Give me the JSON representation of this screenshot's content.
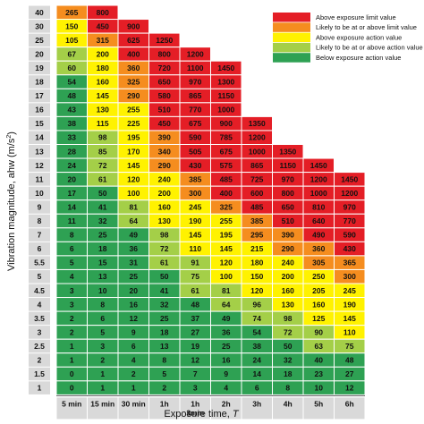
{
  "chart_data": {
    "type": "heatmap",
    "xlabel_main": "Exposure time, ",
    "xlabel_var": "T",
    "ylabel_main": "Vibration magnitude, ahw (m/s",
    "ylabel_sup": "2",
    "ylabel_end": ")",
    "x_categories": [
      {
        "line1": "5 min",
        "line2": ""
      },
      {
        "line1": "15 min",
        "line2": ""
      },
      {
        "line1": "30 min",
        "line2": ""
      },
      {
        "line1": "1h",
        "line2": ""
      },
      {
        "line1": "1h",
        "line2": "3min"
      },
      {
        "line1": "2h",
        "line2": ""
      },
      {
        "line1": "3h",
        "line2": ""
      },
      {
        "line1": "4h",
        "line2": ""
      },
      {
        "line1": "5h",
        "line2": ""
      },
      {
        "line1": "6h",
        "line2": ""
      }
    ],
    "y_categories": [
      "40",
      "30",
      "25",
      "20",
      "19",
      "18",
      "17",
      "16",
      "15",
      "14",
      "13",
      "12",
      "11",
      "10",
      "9",
      "8",
      "7",
      "6",
      "5.5",
      "5",
      "4.5",
      "4",
      "3.5",
      "3",
      "2.5",
      "2",
      "1.5",
      "1"
    ],
    "rows": [
      [
        {
          "v": "265",
          "c": "orange"
        },
        {
          "v": "800",
          "c": "red"
        }
      ],
      [
        {
          "v": "150",
          "c": "yellow"
        },
        {
          "v": "450",
          "c": "red"
        },
        {
          "v": "900",
          "c": "red"
        }
      ],
      [
        {
          "v": "105",
          "c": "yellow"
        },
        {
          "v": "315",
          "c": "orange"
        },
        {
          "v": "625",
          "c": "red"
        },
        {
          "v": "1250",
          "c": "red"
        }
      ],
      [
        {
          "v": "67",
          "c": "lightgreen"
        },
        {
          "v": "200",
          "c": "yellow"
        },
        {
          "v": "400",
          "c": "red"
        },
        {
          "v": "800",
          "c": "red"
        },
        {
          "v": "1200",
          "c": "red"
        }
      ],
      [
        {
          "v": "60",
          "c": "lightgreen"
        },
        {
          "v": "180",
          "c": "yellow"
        },
        {
          "v": "360",
          "c": "orange"
        },
        {
          "v": "720",
          "c": "red"
        },
        {
          "v": "1100",
          "c": "red"
        },
        {
          "v": "1450",
          "c": "red"
        }
      ],
      [
        {
          "v": "54",
          "c": "green"
        },
        {
          "v": "160",
          "c": "yellow"
        },
        {
          "v": "325",
          "c": "orange"
        },
        {
          "v": "650",
          "c": "red"
        },
        {
          "v": "970",
          "c": "red"
        },
        {
          "v": "1300",
          "c": "red"
        }
      ],
      [
        {
          "v": "48",
          "c": "green"
        },
        {
          "v": "145",
          "c": "yellow"
        },
        {
          "v": "290",
          "c": "orange"
        },
        {
          "v": "580",
          "c": "red"
        },
        {
          "v": "865",
          "c": "red"
        },
        {
          "v": "1150",
          "c": "red"
        }
      ],
      [
        {
          "v": "43",
          "c": "green"
        },
        {
          "v": "130",
          "c": "yellow"
        },
        {
          "v": "255",
          "c": "yellow"
        },
        {
          "v": "510",
          "c": "red"
        },
        {
          "v": "770",
          "c": "red"
        },
        {
          "v": "1000",
          "c": "red"
        }
      ],
      [
        {
          "v": "38",
          "c": "green"
        },
        {
          "v": "115",
          "c": "yellow"
        },
        {
          "v": "225",
          "c": "yellow"
        },
        {
          "v": "450",
          "c": "red"
        },
        {
          "v": "675",
          "c": "red"
        },
        {
          "v": "900",
          "c": "red"
        },
        {
          "v": "1350",
          "c": "red"
        }
      ],
      [
        {
          "v": "33",
          "c": "green"
        },
        {
          "v": "98",
          "c": "lightgreen"
        },
        {
          "v": "195",
          "c": "yellow"
        },
        {
          "v": "390",
          "c": "orange"
        },
        {
          "v": "590",
          "c": "red"
        },
        {
          "v": "785",
          "c": "red"
        },
        {
          "v": "1200",
          "c": "red"
        }
      ],
      [
        {
          "v": "28",
          "c": "green"
        },
        {
          "v": "85",
          "c": "lightgreen"
        },
        {
          "v": "170",
          "c": "yellow"
        },
        {
          "v": "340",
          "c": "orange"
        },
        {
          "v": "505",
          "c": "red"
        },
        {
          "v": "675",
          "c": "red"
        },
        {
          "v": "1000",
          "c": "red"
        },
        {
          "v": "1350",
          "c": "red"
        }
      ],
      [
        {
          "v": "24",
          "c": "green"
        },
        {
          "v": "72",
          "c": "lightgreen"
        },
        {
          "v": "145",
          "c": "yellow"
        },
        {
          "v": "290",
          "c": "orange"
        },
        {
          "v": "430",
          "c": "red"
        },
        {
          "v": "575",
          "c": "red"
        },
        {
          "v": "865",
          "c": "red"
        },
        {
          "v": "1150",
          "c": "red"
        },
        {
          "v": "1450",
          "c": "red"
        }
      ],
      [
        {
          "v": "20",
          "c": "green"
        },
        {
          "v": "61",
          "c": "lightgreen"
        },
        {
          "v": "120",
          "c": "yellow"
        },
        {
          "v": "240",
          "c": "yellow"
        },
        {
          "v": "385",
          "c": "orange"
        },
        {
          "v": "485",
          "c": "red"
        },
        {
          "v": "725",
          "c": "red"
        },
        {
          "v": "970",
          "c": "red"
        },
        {
          "v": "1200",
          "c": "red"
        },
        {
          "v": "1450",
          "c": "red"
        }
      ],
      [
        {
          "v": "17",
          "c": "green"
        },
        {
          "v": "50",
          "c": "green"
        },
        {
          "v": "100",
          "c": "yellow"
        },
        {
          "v": "200",
          "c": "yellow"
        },
        {
          "v": "300",
          "c": "orange"
        },
        {
          "v": "400",
          "c": "red"
        },
        {
          "v": "600",
          "c": "red"
        },
        {
          "v": "800",
          "c": "red"
        },
        {
          "v": "1000",
          "c": "red"
        },
        {
          "v": "1200",
          "c": "red"
        }
      ],
      [
        {
          "v": "14",
          "c": "green"
        },
        {
          "v": "41",
          "c": "green"
        },
        {
          "v": "81",
          "c": "lightgreen"
        },
        {
          "v": "160",
          "c": "yellow"
        },
        {
          "v": "245",
          "c": "yellow"
        },
        {
          "v": "325",
          "c": "orange"
        },
        {
          "v": "485",
          "c": "red"
        },
        {
          "v": "650",
          "c": "red"
        },
        {
          "v": "810",
          "c": "red"
        },
        {
          "v": "970",
          "c": "red"
        }
      ],
      [
        {
          "v": "11",
          "c": "green"
        },
        {
          "v": "32",
          "c": "green"
        },
        {
          "v": "64",
          "c": "lightgreen"
        },
        {
          "v": "130",
          "c": "yellow"
        },
        {
          "v": "190",
          "c": "yellow"
        },
        {
          "v": "255",
          "c": "yellow"
        },
        {
          "v": "385",
          "c": "orange"
        },
        {
          "v": "510",
          "c": "red"
        },
        {
          "v": "640",
          "c": "red"
        },
        {
          "v": "770",
          "c": "red"
        }
      ],
      [
        {
          "v": "8",
          "c": "green"
        },
        {
          "v": "25",
          "c": "green"
        },
        {
          "v": "49",
          "c": "green"
        },
        {
          "v": "98",
          "c": "lightgreen"
        },
        {
          "v": "145",
          "c": "yellow"
        },
        {
          "v": "195",
          "c": "yellow"
        },
        {
          "v": "295",
          "c": "orange"
        },
        {
          "v": "390",
          "c": "orange"
        },
        {
          "v": "490",
          "c": "red"
        },
        {
          "v": "590",
          "c": "red"
        }
      ],
      [
        {
          "v": "6",
          "c": "green"
        },
        {
          "v": "18",
          "c": "green"
        },
        {
          "v": "36",
          "c": "green"
        },
        {
          "v": "72",
          "c": "lightgreen"
        },
        {
          "v": "110",
          "c": "yellow"
        },
        {
          "v": "145",
          "c": "yellow"
        },
        {
          "v": "215",
          "c": "yellow"
        },
        {
          "v": "290",
          "c": "orange"
        },
        {
          "v": "360",
          "c": "orange"
        },
        {
          "v": "430",
          "c": "red"
        }
      ],
      [
        {
          "v": "5",
          "c": "green"
        },
        {
          "v": "15",
          "c": "green"
        },
        {
          "v": "31",
          "c": "green"
        },
        {
          "v": "61",
          "c": "lightgreen"
        },
        {
          "v": "91",
          "c": "lightgreen"
        },
        {
          "v": "120",
          "c": "yellow"
        },
        {
          "v": "180",
          "c": "yellow"
        },
        {
          "v": "240",
          "c": "yellow"
        },
        {
          "v": "305",
          "c": "orange"
        },
        {
          "v": "365",
          "c": "orange"
        }
      ],
      [
        {
          "v": "4",
          "c": "green"
        },
        {
          "v": "13",
          "c": "green"
        },
        {
          "v": "25",
          "c": "green"
        },
        {
          "v": "50",
          "c": "green"
        },
        {
          "v": "75",
          "c": "lightgreen"
        },
        {
          "v": "100",
          "c": "yellow"
        },
        {
          "v": "150",
          "c": "yellow"
        },
        {
          "v": "200",
          "c": "yellow"
        },
        {
          "v": "250",
          "c": "yellow"
        },
        {
          "v": "300",
          "c": "orange"
        }
      ],
      [
        {
          "v": "3",
          "c": "green"
        },
        {
          "v": "10",
          "c": "green"
        },
        {
          "v": "20",
          "c": "green"
        },
        {
          "v": "41",
          "c": "green"
        },
        {
          "v": "61",
          "c": "lightgreen"
        },
        {
          "v": "81",
          "c": "lightgreen"
        },
        {
          "v": "120",
          "c": "yellow"
        },
        {
          "v": "160",
          "c": "yellow"
        },
        {
          "v": "205",
          "c": "yellow"
        },
        {
          "v": "245",
          "c": "yellow"
        }
      ],
      [
        {
          "v": "3",
          "c": "green"
        },
        {
          "v": "8",
          "c": "green"
        },
        {
          "v": "16",
          "c": "green"
        },
        {
          "v": "32",
          "c": "green"
        },
        {
          "v": "48",
          "c": "green"
        },
        {
          "v": "64",
          "c": "lightgreen"
        },
        {
          "v": "96",
          "c": "lightgreen"
        },
        {
          "v": "130",
          "c": "yellow"
        },
        {
          "v": "160",
          "c": "yellow"
        },
        {
          "v": "190",
          "c": "yellow"
        }
      ],
      [
        {
          "v": "2",
          "c": "green"
        },
        {
          "v": "6",
          "c": "green"
        },
        {
          "v": "12",
          "c": "green"
        },
        {
          "v": "25",
          "c": "green"
        },
        {
          "v": "37",
          "c": "green"
        },
        {
          "v": "49",
          "c": "green"
        },
        {
          "v": "74",
          "c": "lightgreen"
        },
        {
          "v": "98",
          "c": "lightgreen"
        },
        {
          "v": "125",
          "c": "yellow"
        },
        {
          "v": "145",
          "c": "yellow"
        }
      ],
      [
        {
          "v": "2",
          "c": "green"
        },
        {
          "v": "5",
          "c": "green"
        },
        {
          "v": "9",
          "c": "green"
        },
        {
          "v": "18",
          "c": "green"
        },
        {
          "v": "27",
          "c": "green"
        },
        {
          "v": "36",
          "c": "green"
        },
        {
          "v": "54",
          "c": "green"
        },
        {
          "v": "72",
          "c": "lightgreen"
        },
        {
          "v": "90",
          "c": "lightgreen"
        },
        {
          "v": "110",
          "c": "yellow"
        }
      ],
      [
        {
          "v": "1",
          "c": "green"
        },
        {
          "v": "3",
          "c": "green"
        },
        {
          "v": "6",
          "c": "green"
        },
        {
          "v": "13",
          "c": "green"
        },
        {
          "v": "19",
          "c": "green"
        },
        {
          "v": "25",
          "c": "green"
        },
        {
          "v": "38",
          "c": "green"
        },
        {
          "v": "50",
          "c": "green"
        },
        {
          "v": "63",
          "c": "lightgreen"
        },
        {
          "v": "75",
          "c": "lightgreen"
        }
      ],
      [
        {
          "v": "1",
          "c": "green"
        },
        {
          "v": "2",
          "c": "green"
        },
        {
          "v": "4",
          "c": "green"
        },
        {
          "v": "8",
          "c": "green"
        },
        {
          "v": "12",
          "c": "green"
        },
        {
          "v": "16",
          "c": "green"
        },
        {
          "v": "24",
          "c": "green"
        },
        {
          "v": "32",
          "c": "green"
        },
        {
          "v": "40",
          "c": "green"
        },
        {
          "v": "48",
          "c": "green"
        }
      ],
      [
        {
          "v": "0",
          "c": "green"
        },
        {
          "v": "1",
          "c": "green"
        },
        {
          "v": "2",
          "c": "green"
        },
        {
          "v": "5",
          "c": "green"
        },
        {
          "v": "7",
          "c": "green"
        },
        {
          "v": "9",
          "c": "green"
        },
        {
          "v": "14",
          "c": "green"
        },
        {
          "v": "18",
          "c": "green"
        },
        {
          "v": "23",
          "c": "green"
        },
        {
          "v": "27",
          "c": "green"
        }
      ],
      [
        {
          "v": "0",
          "c": "green"
        },
        {
          "v": "1",
          "c": "green"
        },
        {
          "v": "1",
          "c": "green"
        },
        {
          "v": "2",
          "c": "green"
        },
        {
          "v": "3",
          "c": "green"
        },
        {
          "v": "4",
          "c": "green"
        },
        {
          "v": "6",
          "c": "green"
        },
        {
          "v": "8",
          "c": "green"
        },
        {
          "v": "10",
          "c": "green"
        },
        {
          "v": "12",
          "c": "green"
        }
      ]
    ],
    "legend": [
      {
        "label": "Above exposure limit value",
        "c": "red"
      },
      {
        "label": "Likely to be at or above limit value",
        "c": "orange"
      },
      {
        "label": "Above exposure action value",
        "c": "yellow"
      },
      {
        "label": "Likely to be at or above action value",
        "c": "lightgreen"
      },
      {
        "label": "Below exposure action value",
        "c": "green"
      }
    ],
    "legend_placement": "top-right",
    "colors": {
      "red": "#e41e26",
      "orange": "#f58d1f",
      "yellow": "#fff200",
      "lightgreen": "#a4cf48",
      "green": "#2ea153",
      "label_bg": "#d9d9d9",
      "grid": "#ffffff"
    }
  }
}
